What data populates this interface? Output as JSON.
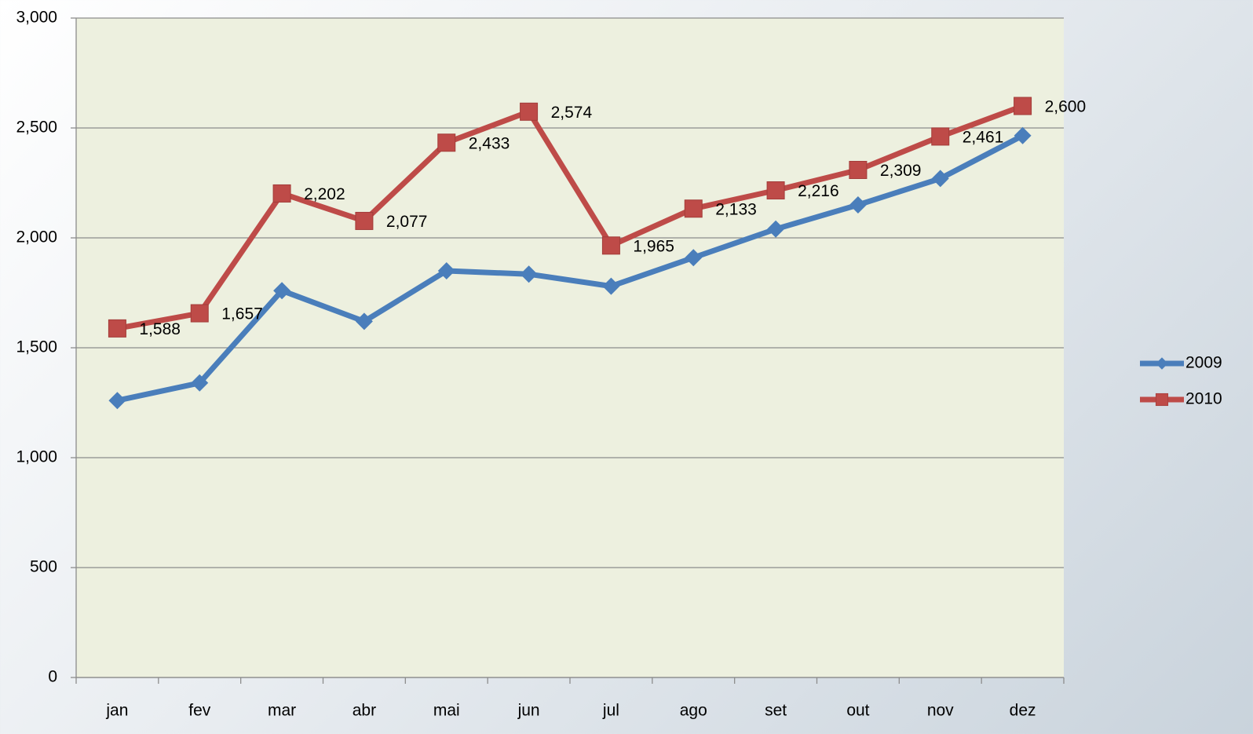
{
  "chart_data": {
    "type": "line",
    "categories": [
      "jan",
      "fev",
      "mar",
      "abr",
      "mai",
      "jun",
      "jul",
      "ago",
      "set",
      "out",
      "nov",
      "dez"
    ],
    "series": [
      {
        "name": "2009",
        "color": "#4a7ebb",
        "marker": "diamond",
        "values": [
          1260,
          1340,
          1760,
          1620,
          1850,
          1835,
          1780,
          1910,
          2040,
          2150,
          2270,
          2465
        ]
      },
      {
        "name": "2010",
        "color": "#be4b48",
        "marker": "square",
        "values": [
          1588,
          1657,
          2202,
          2077,
          2433,
          2574,
          1965,
          2133,
          2216,
          2309,
          2461,
          2600
        ],
        "value_labels": [
          "1,588",
          "1,657",
          "2,202",
          "2,077",
          "2,433",
          "2,574",
          "1,965",
          "2,133",
          "2,216",
          "2,309",
          "2,461",
          "2,600"
        ]
      }
    ],
    "ylim": [
      0,
      3000
    ],
    "yticks": [
      0,
      500,
      {
        "value": 1000,
        "label": "1,000"
      },
      {
        "value": 1500,
        "label": "1,500"
      },
      {
        "value": 2000,
        "label": "2,000"
      },
      {
        "value": 2500,
        "label": "2,500"
      },
      {
        "value": 3000,
        "label": "3,000"
      }
    ],
    "grid": true,
    "legend": "right",
    "plot_background": "#edf0df"
  }
}
